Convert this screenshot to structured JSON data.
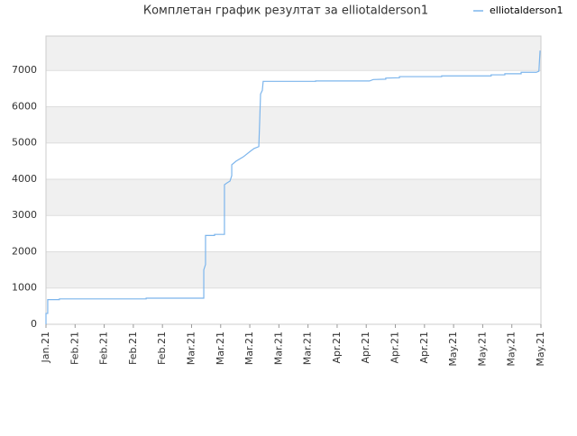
{
  "chart_data": {
    "type": "line",
    "title": "Комплетан график резултат за elliotalderson1",
    "series": [
      {
        "name": "elliotalderson1",
        "color": "#7cb5ec",
        "x": [
          0,
          0,
          0.06,
          0.06,
          0.46,
          0.46,
          3.44,
          3.44,
          5.42,
          5.42,
          5.48,
          5.48,
          5.79,
          5.79,
          6.13,
          6.13,
          6.22,
          6.32,
          6.38,
          6.38,
          6.53,
          6.78,
          7.03,
          7.15,
          7.31,
          7.34,
          7.37,
          7.43,
          7.46,
          9.26,
          9.26,
          11.11,
          11.24,
          11.67,
          11.67,
          12.14,
          12.14,
          13.59,
          13.59,
          15.29,
          15.29,
          15.76,
          15.76,
          16.32,
          16.32,
          16.84,
          16.93,
          16.97
        ],
        "values": [
          0,
          300,
          300,
          680,
          680,
          700,
          700,
          720,
          720,
          1500,
          1650,
          2450,
          2450,
          2480,
          2480,
          3850,
          3900,
          3950,
          4100,
          4400,
          4500,
          4620,
          4780,
          4850,
          4900,
          5600,
          6350,
          6450,
          6700,
          6700,
          6710,
          6710,
          6750,
          6760,
          6790,
          6800,
          6830,
          6830,
          6850,
          6850,
          6880,
          6880,
          6910,
          6910,
          6950,
          6950,
          6980,
          7550
        ]
      }
    ],
    "xlim": [
      0,
      17
    ],
    "xticks": [
      {
        "value": 0,
        "label": "Jan.21"
      },
      {
        "value": 1,
        "label": "Feb.21"
      },
      {
        "value": 2,
        "label": "Feb.21"
      },
      {
        "value": 3,
        "label": "Feb.21"
      },
      {
        "value": 4,
        "label": "Feb.21"
      },
      {
        "value": 5,
        "label": "Mar.21"
      },
      {
        "value": 6,
        "label": "Mar.21"
      },
      {
        "value": 7,
        "label": "Mar.21"
      },
      {
        "value": 8,
        "label": "Mar.21"
      },
      {
        "value": 9,
        "label": "Mar.21"
      },
      {
        "value": 10,
        "label": "Apr.21"
      },
      {
        "value": 11,
        "label": "Apr.21"
      },
      {
        "value": 12,
        "label": "Apr.21"
      },
      {
        "value": 13,
        "label": "Apr.21"
      },
      {
        "value": 14,
        "label": "May.21"
      },
      {
        "value": 15,
        "label": "May.21"
      },
      {
        "value": 16,
        "label": "May.21"
      },
      {
        "value": 17,
        "label": "May.21"
      }
    ],
    "ylim": [
      0,
      7950
    ],
    "yticks": [
      0,
      1000,
      2000,
      3000,
      4000,
      5000,
      6000,
      7000
    ],
    "grid": true,
    "legend": "top-right"
  }
}
